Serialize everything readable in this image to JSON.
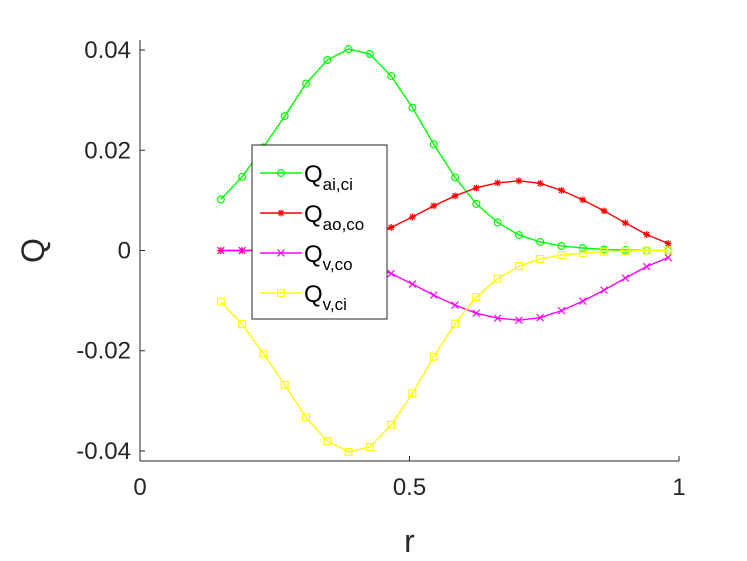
{
  "chart_data": {
    "type": "line",
    "title": "",
    "xlabel": "r",
    "ylabel": "Q",
    "xlim": [
      0,
      1
    ],
    "ylim": [
      -0.042,
      0.042
    ],
    "xticks": [
      0,
      0.5,
      1
    ],
    "xtick_labels": [
      "0",
      "0.5",
      "1"
    ],
    "yticks": [
      -0.04,
      -0.02,
      0,
      0.02,
      0.04
    ],
    "ytick_labels": [
      "-0.04",
      "-0.02",
      "0",
      "0.02",
      "0.04"
    ],
    "grid": false,
    "legend_position": "center-left",
    "x": [
      0.15,
      0.1895,
      0.229,
      0.2685,
      0.308,
      0.3475,
      0.387,
      0.4265,
      0.466,
      0.5055,
      0.545,
      0.5845,
      0.624,
      0.6635,
      0.703,
      0.7425,
      0.782,
      0.8215,
      0.861,
      0.9005,
      0.94,
      0.98
    ],
    "series": [
      {
        "name": "Q",
        "subscript": "ai,ci",
        "color": "#00ff00",
        "marker": "circle",
        "values": [
          0.0102,
          0.0147,
          0.0206,
          0.0268,
          0.0333,
          0.038,
          0.0402,
          0.0392,
          0.0348,
          0.0285,
          0.0212,
          0.0146,
          0.0093,
          0.0056,
          0.0031,
          0.0017,
          0.0009,
          0.0005,
          0.0002,
          0.0001,
          0.0,
          0.0
        ]
      },
      {
        "name": "Q",
        "subscript": "ao,co",
        "color": "#ff0000",
        "marker": "asterisk",
        "values": [
          0.0,
          0.0,
          0.0001,
          0.0002,
          0.0004,
          0.0008,
          0.0015,
          0.0028,
          0.0046,
          0.0067,
          0.0089,
          0.0109,
          0.0125,
          0.0135,
          0.0139,
          0.0134,
          0.012,
          0.0101,
          0.0079,
          0.0055,
          0.0032,
          0.0014
        ]
      },
      {
        "name": "Q",
        "subscript": "v,co",
        "color": "#ff00ff",
        "marker": "x",
        "values": [
          0.0,
          0.0,
          -0.0001,
          -0.0002,
          -0.0004,
          -0.0008,
          -0.0015,
          -0.0028,
          -0.0046,
          -0.0067,
          -0.0089,
          -0.0109,
          -0.0125,
          -0.0135,
          -0.0139,
          -0.0134,
          -0.012,
          -0.0101,
          -0.0079,
          -0.0055,
          -0.0032,
          -0.0014
        ]
      },
      {
        "name": "Q",
        "subscript": "v,ci",
        "color": "#ffff00",
        "marker": "square",
        "values": [
          -0.0102,
          -0.0147,
          -0.0206,
          -0.0268,
          -0.0333,
          -0.038,
          -0.0402,
          -0.0392,
          -0.0348,
          -0.0285,
          -0.0212,
          -0.0146,
          -0.0093,
          -0.0056,
          -0.0031,
          -0.0017,
          -0.0009,
          -0.0005,
          -0.0002,
          -0.0001,
          0.0,
          0.0
        ]
      }
    ]
  }
}
